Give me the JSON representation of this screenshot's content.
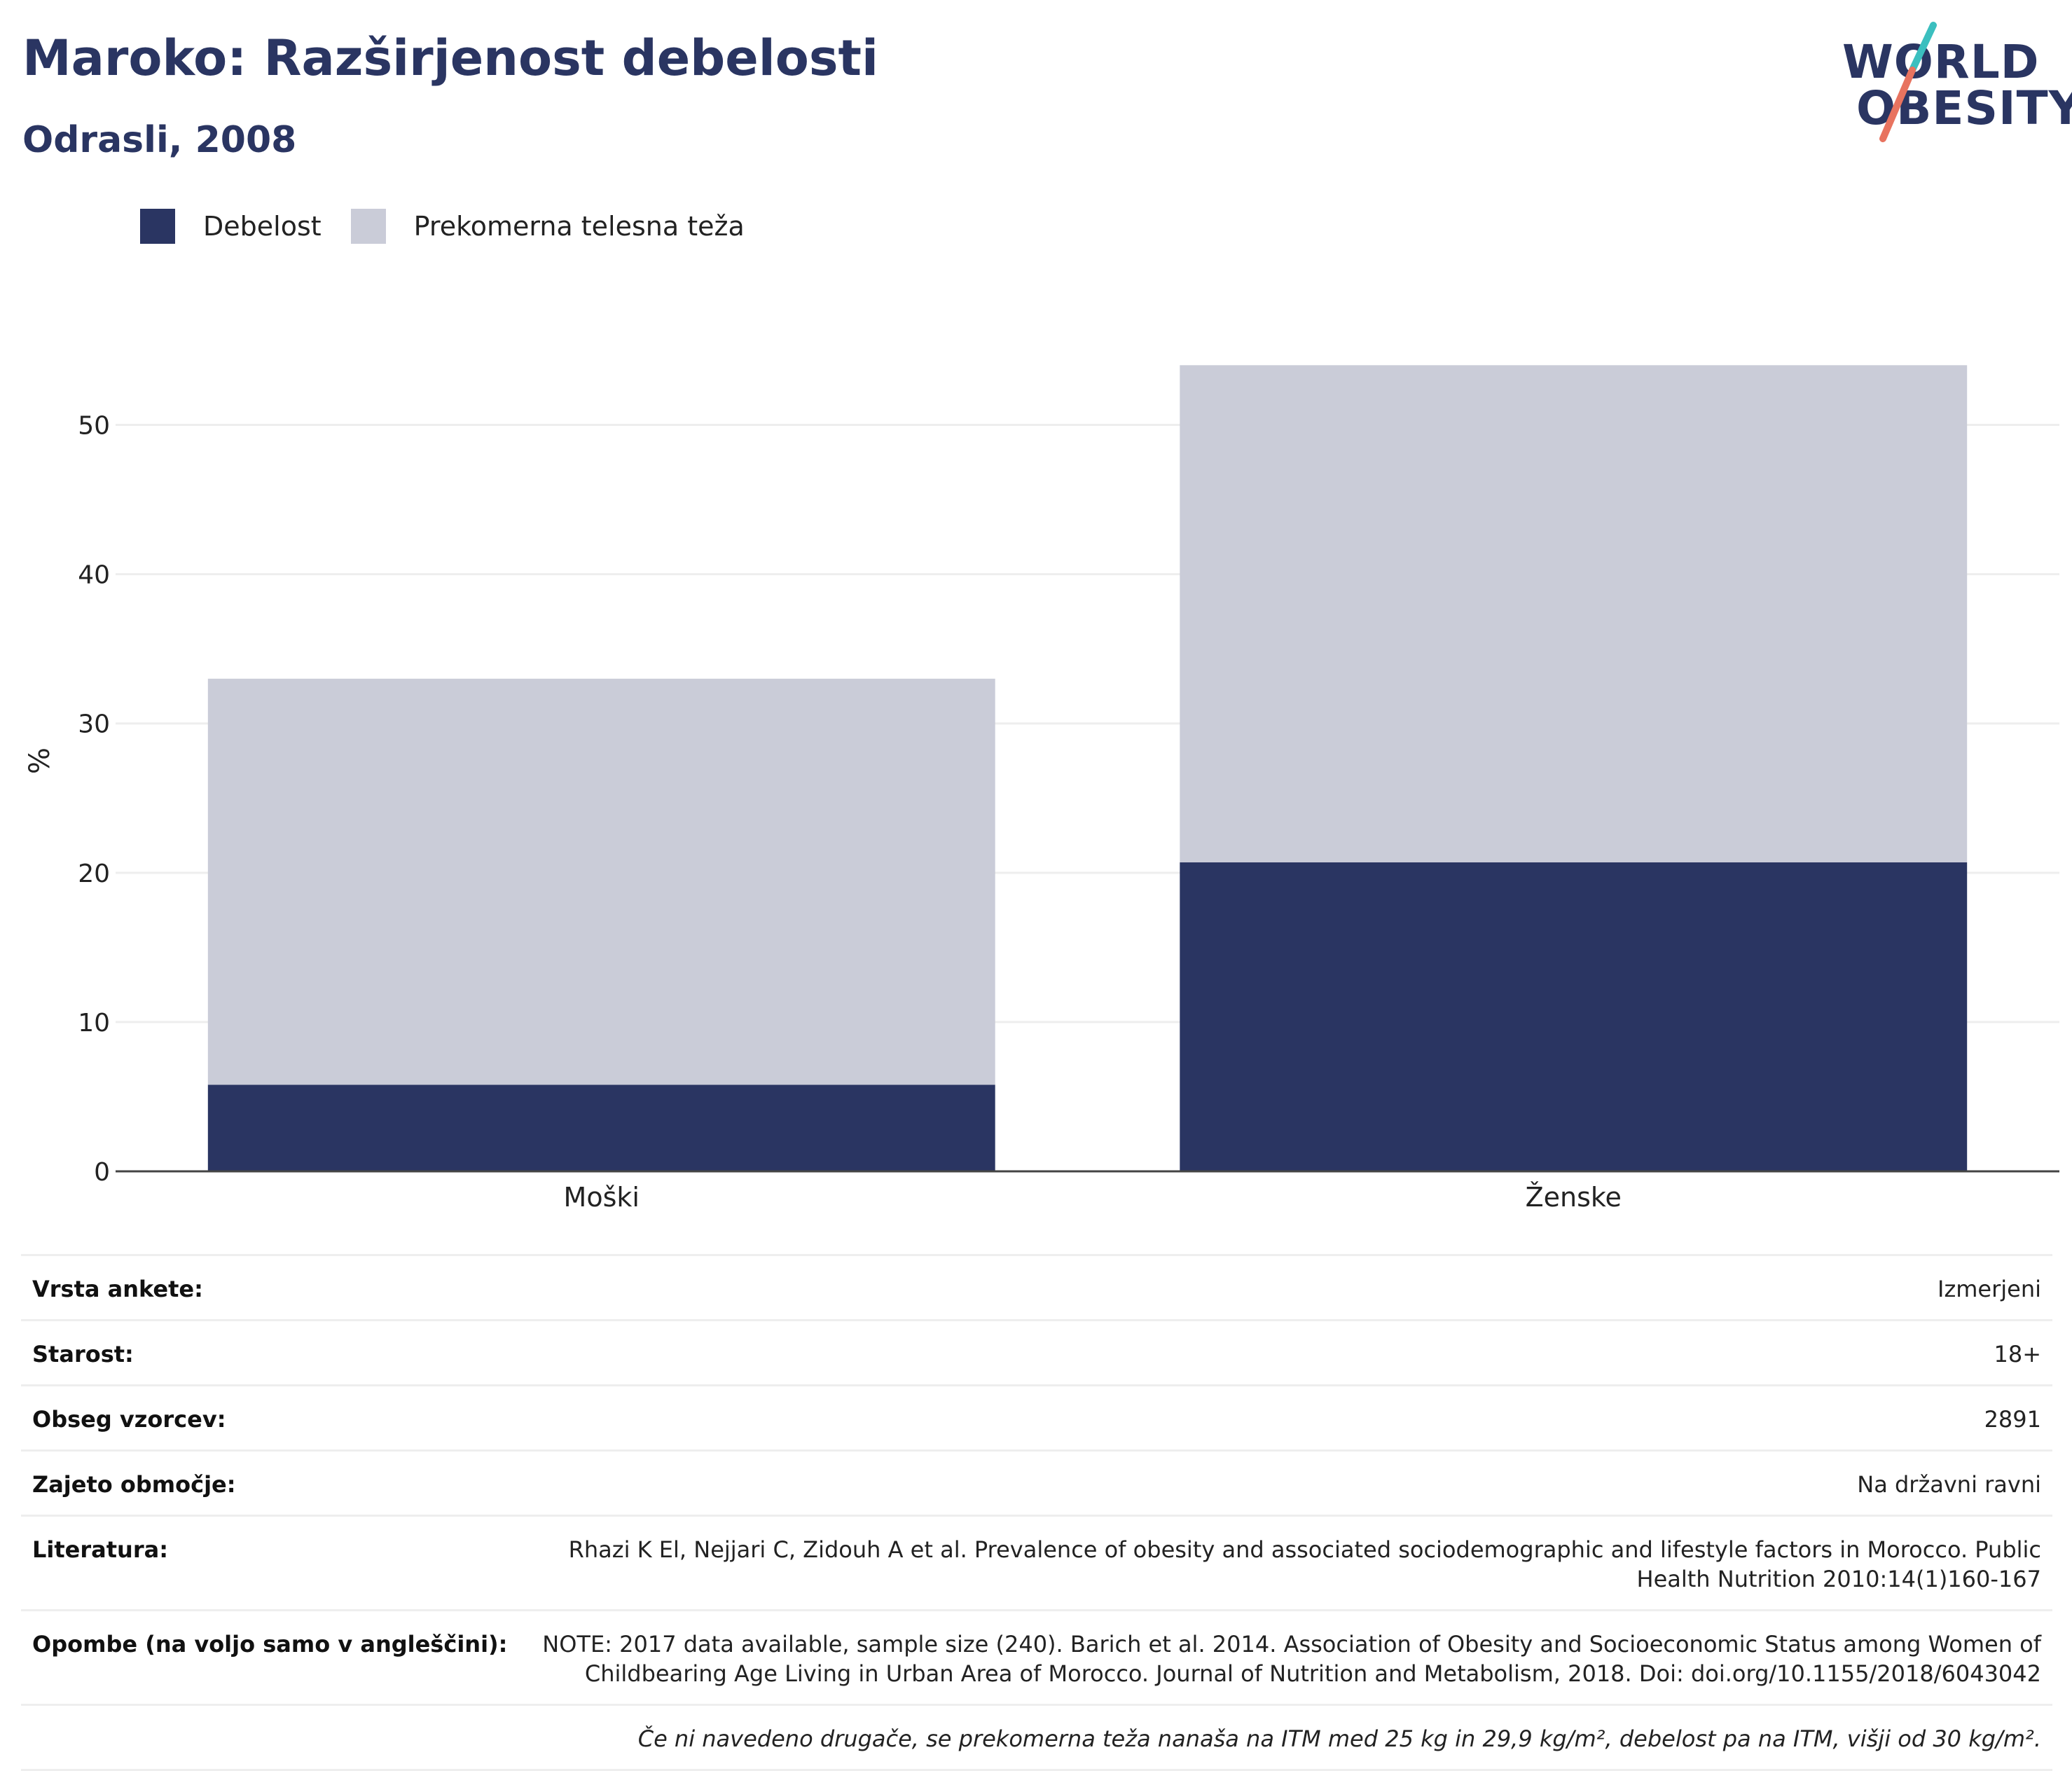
{
  "header": {
    "title": "Maroko: Razširjenost debelosti",
    "subtitle": "Odrasli, 2008"
  },
  "logo": {
    "line1": "WORLD",
    "line2": "OBESITY",
    "accent_teal": "#3bbfbf",
    "accent_coral": "#e8735f"
  },
  "colors": {
    "obesity": "#2a3562",
    "overweight": "#caccd8",
    "grid": "#eeeeee",
    "axis": "#444444"
  },
  "legend": [
    {
      "label": "Debelost",
      "color": "#2a3562"
    },
    {
      "label": "Prekomerna telesna teža",
      "color": "#caccd8"
    }
  ],
  "chart_data": {
    "type": "bar",
    "stacked": true,
    "categories": [
      "Moški",
      "Ženske"
    ],
    "series": [
      {
        "name": "Debelost",
        "values": [
          5.8,
          20.7
        ]
      },
      {
        "name": "Prekomerna telesna teža",
        "values": [
          27.2,
          33.3
        ]
      }
    ],
    "ylabel": "%",
    "ylim": [
      0,
      55
    ],
    "yticks": [
      0,
      10,
      20,
      30,
      40,
      50
    ],
    "grid": true,
    "legend_position": "top-left"
  },
  "info": [
    {
      "label": "Vrsta ankete:",
      "value": "Izmerjeni"
    },
    {
      "label": "Starost:",
      "value": "18+"
    },
    {
      "label": "Obseg vzorcev:",
      "value": "2891"
    },
    {
      "label": "Zajeto območje:",
      "value": "Na državni ravni"
    },
    {
      "label": "Literatura:",
      "value": "Rhazi K El, Nejjari C, Zidouh A et al. Prevalence of obesity and associated sociodemographic and lifestyle factors in Morocco. Public Health Nutrition 2010:14(1)160-167"
    },
    {
      "label": "Opombe (na voljo samo v angleščini):",
      "value": "NOTE: 2017 data available, sample size (240). Barich et al. 2014. Association of Obesity and Socioeconomic Status among Women of Childbearing Age Living in Urban Area of Morocco. Journal of Nutrition and Metabolism, 2018. Doi: doi.org/10.1155/2018/6043042"
    }
  ],
  "footnote": "Če ni navedeno drugače, se prekomerna teža nanaša na ITM med 25 kg in 29,9 kg/m², debelost pa na ITM, višji od 30 kg/m²."
}
